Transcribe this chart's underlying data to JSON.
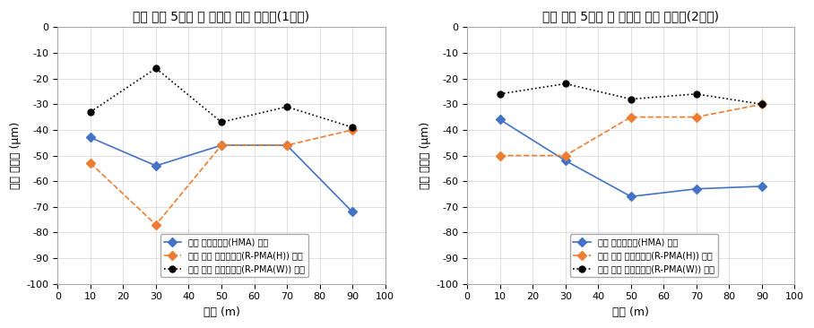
{
  "chart1": {
    "title": "표층 시공 5개월 후 지점별 중앙 처짐량(1차로)",
    "x": [
      10,
      30,
      50,
      70,
      90
    ],
    "hma": [
      -43,
      -54,
      -46,
      -46,
      -72
    ],
    "rpma_h": [
      -53,
      -77,
      -46,
      -46,
      -40
    ],
    "rpma_w": [
      -33,
      -16,
      -37,
      -31,
      -39
    ]
  },
  "chart2": {
    "title": "표층 시공 5개월 후 지점별 중앙 처짐량(2차로)",
    "x": [
      10,
      30,
      50,
      70,
      90
    ],
    "hma": [
      -36,
      -52,
      -66,
      -63,
      -62
    ],
    "rpma_h": [
      -50,
      -50,
      -35,
      -35,
      -30
    ],
    "rpma_w": [
      -26,
      -22,
      -28,
      -26,
      -30
    ]
  },
  "xlabel": "거리 (m)",
  "ylabel": "중앙 처짐량 (μm)",
  "ylim": [
    -100,
    0
  ],
  "xlim": [
    0,
    100
  ],
  "yticks": [
    0,
    -10,
    -20,
    -30,
    -40,
    -50,
    -60,
    -70,
    -80,
    -90,
    -100
  ],
  "xticks": [
    0,
    10,
    20,
    30,
    40,
    50,
    60,
    70,
    80,
    90,
    100
  ],
  "legend_hma": "일반 가열아스콘(HMA) 표층",
  "legend_rpma_h": "순환 개질 가열아스콘(R-PMA(H)) 표층",
  "legend_rpma_w": "순환 중온 개질아스콘(R-PMA(W)) 표층",
  "color_hma": "#4472C4",
  "color_rpma_h": "#ED7D31",
  "color_rpma_w": "#000000",
  "bg_color": "#FFFFFF"
}
